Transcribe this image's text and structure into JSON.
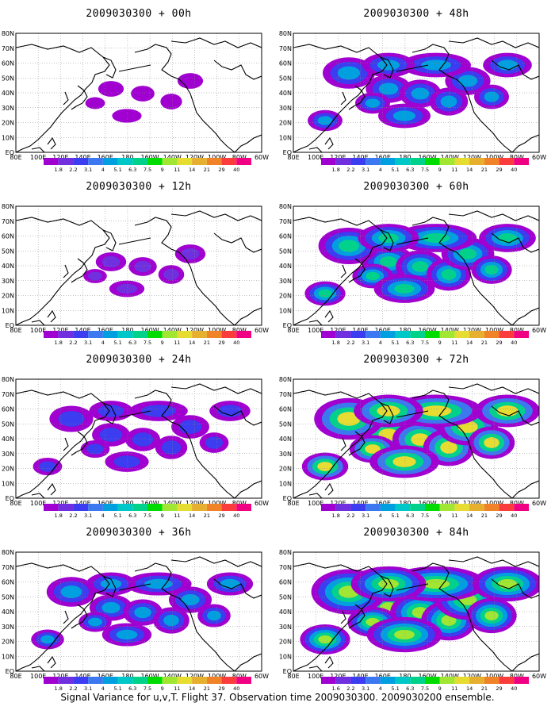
{
  "footer": "Signal Variance for u,v,T. Flight 37. Observation time 2009030300. 2009030200 ensemble.",
  "map": {
    "lat_labels": [
      "80N",
      "70N",
      "60N",
      "50N",
      "40N",
      "30N",
      "20N",
      "10N",
      "EQ"
    ],
    "lon_labels": [
      "80E",
      "100E",
      "120E",
      "140E",
      "160E",
      "180",
      "160W",
      "140W",
      "120W",
      "100W",
      "80W",
      "60W"
    ]
  },
  "colorbar": {
    "labels": [
      "1.8",
      "2.2",
      "3.1",
      "4",
      "5.1",
      "6.3",
      "7.5",
      "9",
      "11",
      "14",
      "21",
      "29",
      "40"
    ],
    "labels_last_panel": [
      "1.6",
      "2.2",
      "3.1",
      "4",
      "5.1",
      "6.3",
      "7.5",
      "9",
      "11",
      "14",
      "21",
      "29",
      "40"
    ],
    "colors": [
      "#a000d0",
      "#7030e0",
      "#3c3cf0",
      "#3c78f0",
      "#00a0e0",
      "#00c8c8",
      "#00d28c",
      "#00dc00",
      "#a0e632",
      "#e6dc32",
      "#e6af2d",
      "#f08228",
      "#fa3c3c",
      "#f00082"
    ]
  },
  "panels": [
    {
      "title": "2009030300 + 00h",
      "level": 0.1
    },
    {
      "title": "2009030300 + 48h",
      "level": 0.5
    },
    {
      "title": "2009030300 + 12h",
      "level": 0.2
    },
    {
      "title": "2009030300 + 60h",
      "level": 0.65
    },
    {
      "title": "2009030300 + 24h",
      "level": 0.35
    },
    {
      "title": "2009030300 + 72h",
      "level": 0.8
    },
    {
      "title": "2009030300 + 36h",
      "level": 0.45
    },
    {
      "title": "2009030300 + 84h",
      "level": 0.9
    }
  ]
}
